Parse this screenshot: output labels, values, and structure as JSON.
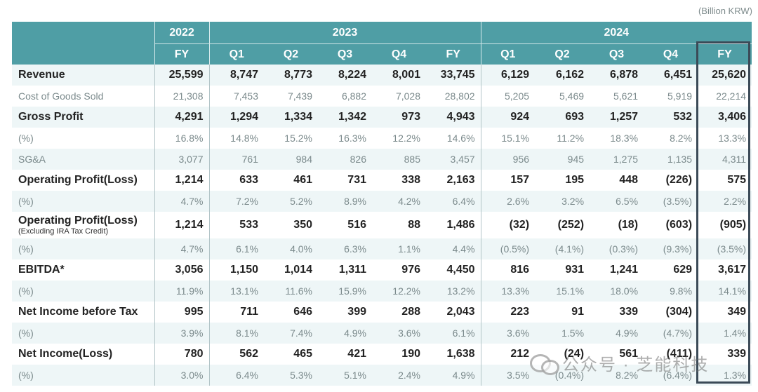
{
  "unit": "(Billion KRW)",
  "header": {
    "years": [
      {
        "label": "2022",
        "span": 1
      },
      {
        "label": "2023",
        "span": 5
      },
      {
        "label": "2024",
        "span": 5
      }
    ],
    "periods": [
      "FY",
      "Q1",
      "Q2",
      "Q3",
      "Q4",
      "FY",
      "Q1",
      "Q2",
      "Q3",
      "Q4",
      "FY"
    ]
  },
  "rows": [
    {
      "label": "Revenue",
      "style": "bold",
      "values": [
        "25,599",
        "8,747",
        "8,773",
        "8,224",
        "8,001",
        "33,745",
        "6,129",
        "6,162",
        "6,878",
        "6,451",
        "25,620"
      ]
    },
    {
      "label": "Cost of Goods Sold",
      "style": "light",
      "values": [
        "21,308",
        "7,453",
        "7,439",
        "6,882",
        "7,028",
        "28,802",
        "5,205",
        "5,469",
        "5,621",
        "5,919",
        "22,214"
      ]
    },
    {
      "label": "Gross Profit",
      "style": "bold",
      "values": [
        "4,291",
        "1,294",
        "1,334",
        "1,342",
        "973",
        "4,943",
        "924",
        "693",
        "1,257",
        "532",
        "3,406"
      ]
    },
    {
      "label": "(%)",
      "style": "light",
      "values": [
        "16.8%",
        "14.8%",
        "15.2%",
        "16.3%",
        "12.2%",
        "14.6%",
        "15.1%",
        "11.2%",
        "18.3%",
        "8.2%",
        "13.3%"
      ]
    },
    {
      "label": "SG&A",
      "style": "light",
      "values": [
        "3,077",
        "761",
        "984",
        "826",
        "885",
        "3,457",
        "956",
        "945",
        "1,275",
        "1,135",
        "4,311"
      ]
    },
    {
      "label": "Operating Profit(Loss)",
      "style": "bold",
      "values": [
        "1,214",
        "633",
        "461",
        "731",
        "338",
        "2,163",
        "157",
        "195",
        "448",
        "(226)",
        "575"
      ]
    },
    {
      "label": "(%)",
      "style": "light",
      "values": [
        "4.7%",
        "7.2%",
        "5.2%",
        "8.9%",
        "4.2%",
        "6.4%",
        "2.6%",
        "3.2%",
        "6.5%",
        "(3.5%)",
        "2.2%"
      ]
    },
    {
      "label": "Operating Profit(Loss)",
      "sublabel": "(Excluding IRA Tax Credit)",
      "style": "bold",
      "values": [
        "1,214",
        "533",
        "350",
        "516",
        "88",
        "1,486",
        "(32)",
        "(252)",
        "(18)",
        "(603)",
        "(905)"
      ]
    },
    {
      "label": "(%)",
      "style": "light",
      "values": [
        "4.7%",
        "6.1%",
        "4.0%",
        "6.3%",
        "1.1%",
        "4.4%",
        "(0.5%)",
        "(4.1%)",
        "(0.3%)",
        "(9.3%)",
        "(3.5%)"
      ]
    },
    {
      "label": "EBITDA*",
      "style": "bold",
      "values": [
        "3,056",
        "1,150",
        "1,014",
        "1,311",
        "976",
        "4,450",
        "816",
        "931",
        "1,241",
        "629",
        "3,617"
      ]
    },
    {
      "label": "(%)",
      "style": "light",
      "values": [
        "11.9%",
        "13.1%",
        "11.6%",
        "15.9%",
        "12.2%",
        "13.2%",
        "13.3%",
        "15.1%",
        "18.0%",
        "9.8%",
        "14.1%"
      ]
    },
    {
      "label": "Net Income before Tax",
      "style": "bold",
      "values": [
        "995",
        "711",
        "646",
        "399",
        "288",
        "2,043",
        "223",
        "91",
        "339",
        "(304)",
        "349"
      ]
    },
    {
      "label": "(%)",
      "style": "light",
      "values": [
        "3.9%",
        "8.1%",
        "7.4%",
        "4.9%",
        "3.6%",
        "6.1%",
        "3.6%",
        "1.5%",
        "4.9%",
        "(4.7%)",
        "1.4%"
      ]
    },
    {
      "label": "Net Income(Loss)",
      "style": "bold",
      "values": [
        "780",
        "562",
        "465",
        "421",
        "190",
        "1,638",
        "212",
        "(24)",
        "561",
        "(411)",
        "339"
      ]
    },
    {
      "label": "(%)",
      "style": "light",
      "values": [
        "3.0%",
        "6.4%",
        "5.3%",
        "5.1%",
        "2.4%",
        "4.9%",
        "3.5%",
        "(0.4%)",
        "8.2%",
        "(6.4%)",
        "1.3%"
      ]
    }
  ],
  "watermark": "公众号 · 芝能科技",
  "colors": {
    "header_bg": "#4f9ea5",
    "stripe_bg": "#eef6f7",
    "highlight_border": "#3b4a57"
  }
}
